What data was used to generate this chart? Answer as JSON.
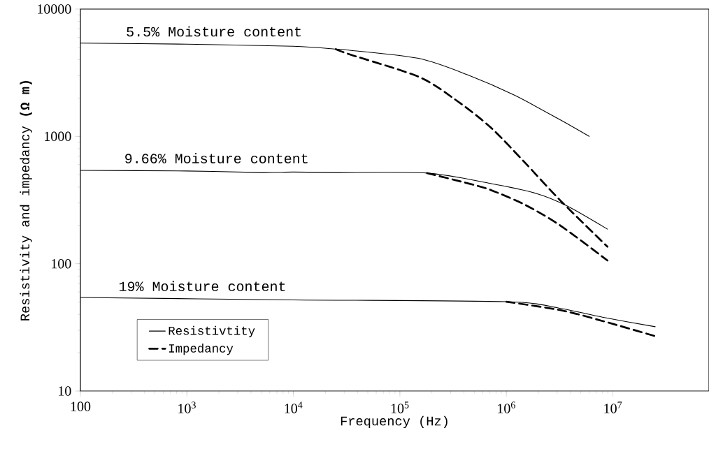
{
  "chart_data": {
    "type": "line",
    "xlabel": "Frequency (Hz)",
    "ylabel": "Resistivity and impedancy    **(Ω m)**",
    "log": "xy",
    "grid": false,
    "legend": "bottom left",
    "xlim": [
      100,
      80000000
    ],
    "ylim": [
      10,
      10000
    ],
    "xticks": [
      100,
      {
        "value": 1000,
        "label": "10$^{3}$"
      },
      {
        "value": 10000,
        "label": "10$^{4}$"
      },
      {
        "value": 100000,
        "label": "10$^{5}$"
      },
      {
        "value": 1000000,
        "label": "10$^{6}$"
      },
      {
        "value": 10000000,
        "label": "10$^{7}$"
      }
    ],
    "yticks": [
      10,
      100,
      1000,
      10000
    ],
    "series": [
      {
        "name": "Resistivtity",
        "color": "#000000",
        "line_style": "solid",
        "x": [
          100,
          1000,
          10000,
          25000,
          34000,
          150000,
          430000,
          1200000,
          3200000,
          6000000
        ],
        "values": [
          5400,
          5300,
          5100,
          4850,
          4750,
          4100,
          3050,
          2100,
          1350,
          1000
        ]
      },
      {
        "name": "Impedancy",
        "color": "#000000",
        "line_style": "dashed",
        "x": [
          25000,
          34000,
          150000,
          330000,
          710000,
          1500000,
          3200000,
          8900000
        ],
        "values": [
          4850,
          4400,
          2940,
          1950,
          1180,
          620,
          315,
          136
        ]
      },
      {
        "color": "#000000",
        "line_style": "solid",
        "x": [
          100,
          1000,
          5000,
          10000,
          25000,
          180000,
          710000,
          1900000,
          3700000,
          8900000
        ],
        "values": [
          541,
          535,
          520,
          525,
          520,
          515,
          427,
          357,
          285,
          187
        ]
      },
      {
        "color": "#000000",
        "line_style": "dashed",
        "x": [
          180000,
          450000,
          710000,
          1500000,
          3200000,
          8900000
        ],
        "values": [
          515,
          425,
          380,
          290,
          200,
          106
        ]
      },
      {
        "color": "#000000",
        "line_style": "solid",
        "x": [
          100,
          10000,
          1000000,
          3300000,
          8000000,
          25000000
        ],
        "values": [
          54.3,
          52,
          50.3,
          44.4,
          38,
          32
        ]
      },
      {
        "color": "#000000",
        "line_style": "dashed",
        "x": [
          1000000,
          3300000,
          8000000,
          25000000
        ],
        "values": [
          50.3,
          43,
          35.5,
          27
        ]
      }
    ],
    "annotations": [
      {
        "text": "5.5% Moisture content",
        "x": 1800,
        "y": 5300
      },
      {
        "text": "9.66% Moisture content",
        "x": 1900,
        "y": 535
      },
      {
        "text": "19% Moisture content",
        "x": 1400,
        "y": 53
      }
    ]
  }
}
